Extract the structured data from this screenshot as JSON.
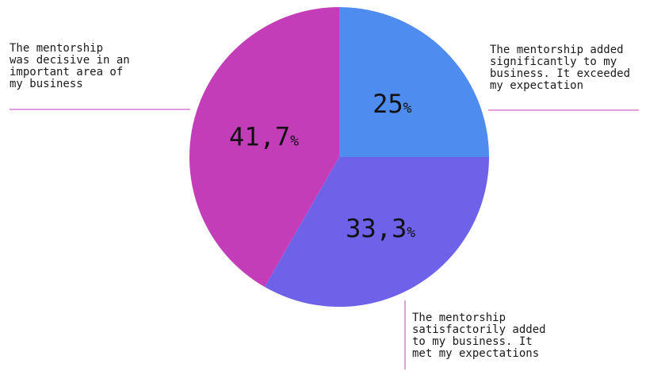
{
  "chart_data": {
    "type": "pie",
    "title": "",
    "slices": [
      {
        "label": "The mentorship added significantly to my business. It exceeded my expectation",
        "value": 25,
        "display_number": "25",
        "display_unit": "%",
        "color": "#4F8CF0"
      },
      {
        "label": "The mentorship satisfactorily added to my business. It met my expectations",
        "value": 33.3,
        "display_number": "33,3",
        "display_unit": "%",
        "color": "#6D62E8"
      },
      {
        "label": "The mentorship was decisive in an important area of my business",
        "value": 41.7,
        "display_number": "41,7",
        "display_unit": "%",
        "color": "#C33DB9"
      }
    ],
    "start_angle": "12 o'clock",
    "direction": "clockwise",
    "legend": "callouts with connector lines",
    "callout_line_color": "#C33DB9"
  },
  "callouts": [
    {
      "text": "The mentorship added\nsignificantly to my\nbusiness. It exceeded\nmy expectation"
    },
    {
      "text": "The mentorship\nsatisfactorily added\nto my business. It\nmet my expectations"
    },
    {
      "text": "The mentorship\nwas decisive in an\nimportant area of\nmy business"
    }
  ]
}
